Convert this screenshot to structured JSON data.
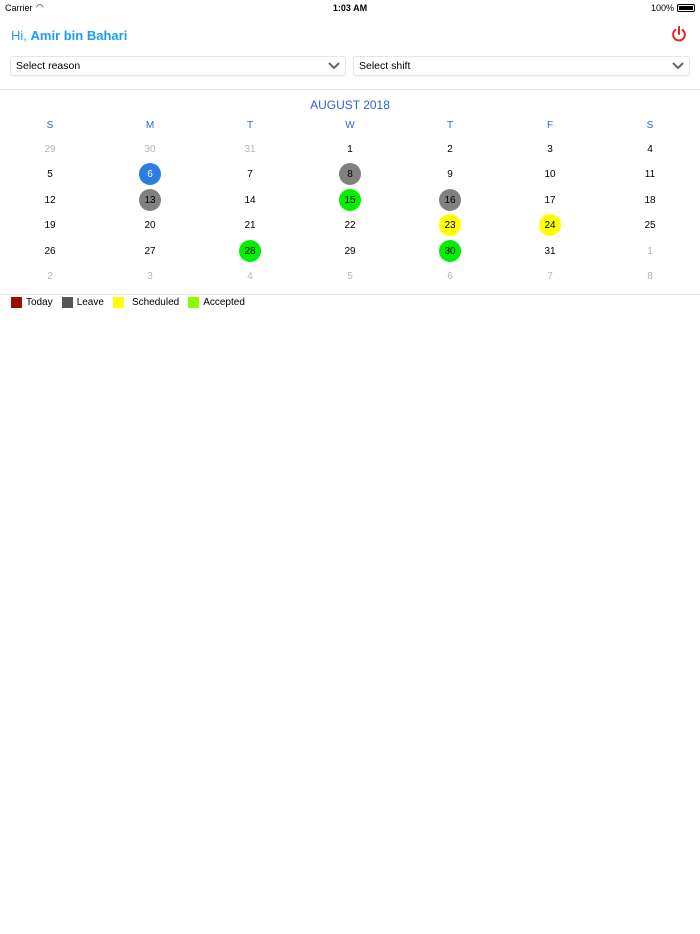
{
  "status_bar": {
    "carrier": "Carrier",
    "time": "1:03 AM",
    "battery": "100%"
  },
  "header": {
    "greeting": "Hi,",
    "user_name": "Amir bin Bahari",
    "power_icon_color": "#e8241b"
  },
  "selects": {
    "reason": "Select reason",
    "shift": "Select shift"
  },
  "calendar": {
    "month_title": "AUGUST 2018",
    "weekdays": [
      "S",
      "M",
      "T",
      "W",
      "T",
      "F",
      "S"
    ],
    "weeks": [
      [
        {
          "d": "29",
          "muted": true
        },
        {
          "d": "30",
          "muted": true
        },
        {
          "d": "31",
          "muted": true
        },
        {
          "d": "1"
        },
        {
          "d": "2"
        },
        {
          "d": "3"
        },
        {
          "d": "4"
        }
      ],
      [
        {
          "d": "5"
        },
        {
          "d": "6",
          "status": "selected"
        },
        {
          "d": "7"
        },
        {
          "d": "8",
          "status": "leave"
        },
        {
          "d": "9"
        },
        {
          "d": "10"
        },
        {
          "d": "11"
        }
      ],
      [
        {
          "d": "12"
        },
        {
          "d": "13",
          "status": "leave"
        },
        {
          "d": "14"
        },
        {
          "d": "15",
          "status": "accepted"
        },
        {
          "d": "16",
          "status": "leave"
        },
        {
          "d": "17"
        },
        {
          "d": "18"
        }
      ],
      [
        {
          "d": "19"
        },
        {
          "d": "20"
        },
        {
          "d": "21"
        },
        {
          "d": "22"
        },
        {
          "d": "23",
          "status": "scheduled"
        },
        {
          "d": "24",
          "status": "scheduled"
        },
        {
          "d": "25"
        }
      ],
      [
        {
          "d": "26"
        },
        {
          "d": "27"
        },
        {
          "d": "28",
          "status": "accepted"
        },
        {
          "d": "29"
        },
        {
          "d": "30",
          "status": "accepted"
        },
        {
          "d": "31"
        },
        {
          "d": "1",
          "muted": true
        }
      ],
      [
        {
          "d": "2",
          "muted": true
        },
        {
          "d": "3",
          "muted": true
        },
        {
          "d": "4",
          "muted": true
        },
        {
          "d": "5",
          "muted": true
        },
        {
          "d": "6",
          "muted": true
        },
        {
          "d": "7",
          "muted": true
        },
        {
          "d": "8",
          "muted": true
        }
      ]
    ],
    "status_colors": {
      "selected": "#2a7de1",
      "leave": "#808080",
      "accepted": "#00f000",
      "scheduled": "#ffff00"
    }
  },
  "legend": [
    {
      "label": "Today",
      "color": "#9b0d00"
    },
    {
      "label": "Leave",
      "color": "#555555"
    },
    {
      "label": "Scheduled",
      "color": "#ffff00"
    },
    {
      "label": "Accepted",
      "color": "#88ff00"
    }
  ]
}
